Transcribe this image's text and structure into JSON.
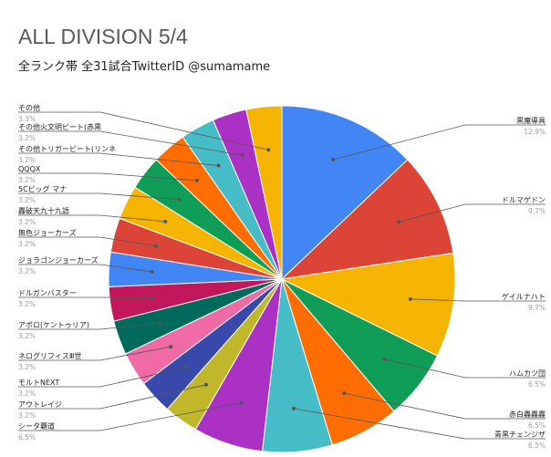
{
  "chart_data": {
    "type": "pie",
    "title": "ALL DIVISION 5/4",
    "subtitle": "全ランク帯 全31試合TwitterID @sumamame",
    "slices": [
      {
        "label": "黒魔導具",
        "percent_label": "12.9%",
        "value": 12.9,
        "color": "#4285f4"
      },
      {
        "label": "ドルマゲドン",
        "percent_label": "9.7%",
        "value": 9.7,
        "color": "#db4437"
      },
      {
        "label": "ゲイルナハト",
        "percent_label": "9.7%",
        "value": 9.7,
        "color": "#f4b400"
      },
      {
        "label": "ハムカツ団",
        "percent_label": "6.5%",
        "value": 6.5,
        "color": "#0f9d58"
      },
      {
        "label": "赤白轟轟轟",
        "percent_label": "6.5%",
        "value": 6.5,
        "color": "#ff6d00"
      },
      {
        "label": "青黒チェンジザ",
        "percent_label": "6.5%",
        "value": 6.5,
        "color": "#46bdc6"
      },
      {
        "label": "シータ覇道",
        "percent_label": "6.5%",
        "value": 6.5,
        "color": "#ab30c4"
      },
      {
        "label": "アウトレイジ",
        "percent_label": "3.2%",
        "value": 3.2,
        "color": "#c0b82a"
      },
      {
        "label": "モルトNEXT",
        "percent_label": "3.2%",
        "value": 3.2,
        "color": "#3949ab"
      },
      {
        "label": "ネログリフィスⅢ世",
        "percent_label": "3.2%",
        "value": 3.2,
        "color": "#f06aa5"
      },
      {
        "label": "アポロ(ケントゥリア)",
        "percent_label": "3.2%",
        "value": 3.2,
        "color": "#006b5c"
      },
      {
        "label": "ドルガンバスター",
        "percent_label": "3.2%",
        "value": 3.2,
        "color": "#c2185b"
      },
      {
        "label": "ジョラゴンジョーカーズ",
        "percent_label": "3.2%",
        "value": 3.2,
        "color": "#4285f4"
      },
      {
        "label": "無色ジョーカーズ",
        "percent_label": "3.2%",
        "value": 3.2,
        "color": "#db4437"
      },
      {
        "label": "轟破天九十九語",
        "percent_label": "3.2%",
        "value": 3.2,
        "color": "#f4b400"
      },
      {
        "label": "5Cビッグ マナ",
        "percent_label": "3.2%",
        "value": 3.2,
        "color": "#0f9d58"
      },
      {
        "label": "QQQX",
        "percent_label": "3.2%",
        "value": 3.2,
        "color": "#ff6d00"
      },
      {
        "label": "その他トリガービート(リンネ",
        "percent_label": "3.2%",
        "value": 3.2,
        "color": "#46bdc6"
      },
      {
        "label": "その他火文明ビート(赤黒",
        "percent_label": "3.2%",
        "value": 3.2,
        "color": "#ab30c4"
      },
      {
        "label": "その他",
        "percent_label": "3.3%",
        "value": 3.3,
        "color": "#f4b400"
      }
    ]
  }
}
